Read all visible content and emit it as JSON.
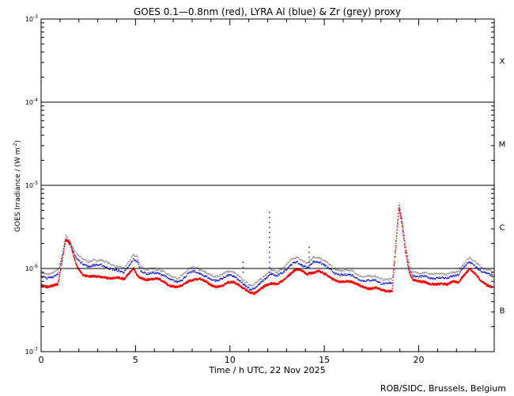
{
  "chart_data": {
    "type": "scatter",
    "title": "GOES 0.1—0.8nm (red), LYRA Al (blue) & Zr (grey) proxy",
    "xlabel": "Time / h UTC, 22 Nov 2025",
    "ylabel": "GOES Irradiance / (W m",
    "ylabel_sup": "-2",
    "ylabel_close": ")",
    "xlim": [
      0,
      24
    ],
    "ylim": [
      1e-07,
      0.001
    ],
    "yscale": "log",
    "x_ticks": [
      0,
      5,
      10,
      15,
      20
    ],
    "x_tick_labels": [
      "0",
      "5",
      "10",
      "15",
      "20"
    ],
    "y_ticks": [
      {
        "value": 1e-07,
        "base": "10",
        "exp": "-7"
      },
      {
        "value": 1e-06,
        "base": "10",
        "exp": "-6"
      },
      {
        "value": 1e-05,
        "base": "10",
        "exp": "-5"
      },
      {
        "value": 0.0001,
        "base": "10",
        "exp": "-4"
      },
      {
        "value": 0.001,
        "base": "10",
        "exp": "-3"
      }
    ],
    "threshold_lines": [
      1e-06,
      1e-05,
      0.0001
    ],
    "flare_classes": [
      {
        "label": "X",
        "value": 0.000316
      },
      {
        "label": "M",
        "value": 3.16e-05
      },
      {
        "label": "C",
        "value": 3.16e-06
      },
      {
        "label": "B",
        "value": 3.16e-07
      }
    ],
    "colors": {
      "goes": "#ff0000",
      "lyra_al": "#0000cc",
      "lyra_zr": "#8c8c8c",
      "frame": "#000000"
    },
    "series": [
      {
        "name": "GOES",
        "color": "#ff0000",
        "x": [
          0,
          0.3,
          0.6,
          0.9,
          1.1,
          1.3,
          1.5,
          1.7,
          1.9,
          2.2,
          2.5,
          2.8,
          3.2,
          3.6,
          4.0,
          4.4,
          4.7,
          4.9,
          5.1,
          5.3,
          5.6,
          5.9,
          6.2,
          6.5,
          6.8,
          7.2,
          7.5,
          7.8,
          8.1,
          8.4,
          8.7,
          9.0,
          9.3,
          9.6,
          9.9,
          10.2,
          10.5,
          10.8,
          11.1,
          11.3,
          11.6,
          11.9,
          12.2,
          12.5,
          12.9,
          13.2,
          13.5,
          13.8,
          14.1,
          14.4,
          14.7,
          15.0,
          15.3,
          15.6,
          15.9,
          16.2,
          16.5,
          16.8,
          17.1,
          17.4,
          17.7,
          18.0,
          18.3,
          18.6,
          18.8,
          18.95,
          19.1,
          19.3,
          19.5,
          19.7,
          20.0,
          20.3,
          20.6,
          20.9,
          21.2,
          21.5,
          21.8,
          22.1,
          22.4,
          22.7,
          23.0,
          23.3,
          23.6,
          23.9
        ],
        "y": [
          6.3e-07,
          6e-07,
          6.2e-07,
          6.5e-07,
          1.2e-06,
          2.2e-06,
          2.1e-06,
          1.5e-06,
          1.05e-06,
          8.4e-07,
          8e-07,
          8.1e-07,
          7.9e-07,
          7.6e-07,
          7.8e-07,
          7.5e-07,
          9e-07,
          1e-06,
          8.2e-07,
          7.6e-07,
          7.3e-07,
          7.5e-07,
          7.6e-07,
          6.9e-07,
          6.2e-07,
          6e-07,
          6.3e-07,
          7e-07,
          7.3e-07,
          7.5e-07,
          7e-07,
          6.3e-07,
          6e-07,
          6.2e-07,
          6.8e-07,
          6.9e-07,
          6.3e-07,
          5.6e-07,
          5.1e-07,
          5e-07,
          5.6e-07,
          6.3e-07,
          6.6e-07,
          6.5e-07,
          7.4e-07,
          8.6e-07,
          9.8e-07,
          9.5e-07,
          8.5e-07,
          8.9e-07,
          9.3e-07,
          8.7e-07,
          7.9e-07,
          7.1e-07,
          6.9e-07,
          7e-07,
          6.9e-07,
          6.4e-07,
          5.9e-07,
          5.7e-07,
          5.9e-07,
          5.6e-07,
          5.3e-07,
          5.4e-07,
          1.9e-06,
          5.3e-06,
          3.6e-06,
          1.6e-06,
          9e-07,
          7.3e-07,
          7e-07,
          6.9e-07,
          6.5e-07,
          6.4e-07,
          6.6e-07,
          6.4e-07,
          7e-07,
          6.8e-07,
          8.3e-07,
          9.9e-07,
          8.6e-07,
          7.1e-07,
          6.3e-07,
          6e-07
        ]
      },
      {
        "name": "LYRA Al",
        "color": "#0000cc",
        "x": [
          0,
          0.3,
          0.6,
          0.9,
          1.1,
          1.3,
          1.5,
          1.7,
          1.9,
          2.2,
          2.5,
          2.8,
          3.2,
          3.6,
          4.0,
          4.4,
          4.7,
          4.9,
          5.1,
          5.3,
          5.6,
          5.9,
          6.2,
          6.5,
          6.8,
          7.2,
          7.5,
          7.8,
          8.1,
          8.4,
          8.7,
          9.0,
          9.3,
          9.6,
          9.9,
          10.2,
          10.5,
          10.8,
          11.1,
          11.3,
          11.6,
          11.9,
          12.2,
          12.5,
          12.9,
          13.2,
          13.5,
          13.8,
          14.1,
          14.4,
          14.7,
          15.0,
          15.3,
          15.6,
          15.9,
          16.2,
          16.5,
          16.8,
          17.1,
          17.4,
          17.7,
          18.0,
          18.3,
          18.6,
          18.8,
          18.95,
          19.1,
          19.3,
          19.5,
          19.7,
          20.0,
          20.3,
          20.6,
          20.9,
          21.2,
          21.5,
          21.8,
          22.1,
          22.4,
          22.7,
          23.0,
          23.3,
          23.6,
          23.9
        ],
        "y": [
          8.1e-07,
          7.6e-07,
          7.9e-07,
          8.7e-07,
          1.3e-06,
          2.3e-06,
          2e-06,
          1.6e-06,
          1.3e-06,
          1.15e-06,
          1.05e-06,
          1.1e-06,
          1.1e-06,
          1e-06,
          9.5e-07,
          9e-07,
          1.1e-06,
          1.3e-06,
          1.2e-06,
          9.3e-07,
          8.6e-07,
          8.9e-07,
          8.7e-07,
          8.3e-07,
          7.4e-07,
          6.9e-07,
          7.4e-07,
          8.7e-07,
          9.3e-07,
          8.6e-07,
          8.1e-07,
          7.4e-07,
          7.1e-07,
          7.6e-07,
          8.3e-07,
          8.1e-07,
          7.1e-07,
          6.2e-07,
          5.6e-07,
          5.8e-07,
          6.6e-07,
          7.6e-07,
          8.6e-07,
          8.1e-07,
          9.3e-07,
          1.1e-06,
          1.2e-06,
          1.1e-06,
          1.02e-06,
          1.2e-06,
          1.2e-06,
          1.1e-06,
          9.8e-07,
          8.6e-07,
          8.3e-07,
          8.5e-07,
          8.3e-07,
          7.4e-07,
          7.1e-07,
          7.2e-07,
          7.3e-07,
          6.6e-07,
          6.5e-07,
          6.8e-07,
          2.2e-06,
          5.6e-06,
          4e-06,
          1.8e-06,
          1e-06,
          8.1e-07,
          7.9e-07,
          8.1e-07,
          7.7e-07,
          7.6e-07,
          7.8e-07,
          7.6e-07,
          8.1e-07,
          8.3e-07,
          1.05e-06,
          1.2e-06,
          1.05e-06,
          9.3e-07,
          8.7e-07,
          8.3e-07
        ]
      },
      {
        "name": "LYRA Zr",
        "color": "#8c8c8c",
        "x": [
          0,
          0.3,
          0.6,
          0.9,
          1.1,
          1.3,
          1.5,
          1.7,
          1.9,
          2.2,
          2.5,
          2.8,
          3.2,
          3.6,
          4.0,
          4.4,
          4.7,
          4.9,
          5.1,
          5.3,
          5.6,
          5.9,
          6.2,
          6.5,
          6.8,
          7.2,
          7.5,
          7.8,
          8.1,
          8.4,
          8.7,
          9.0,
          9.3,
          9.6,
          9.9,
          10.2,
          10.5,
          10.8,
          11.1,
          11.3,
          11.6,
          11.9,
          12.2,
          12.5,
          12.9,
          13.2,
          13.5,
          13.8,
          14.1,
          14.4,
          14.7,
          15.0,
          15.3,
          15.6,
          15.9,
          16.2,
          16.5,
          16.8,
          17.1,
          17.4,
          17.7,
          18.0,
          18.3,
          18.6,
          18.8,
          18.95,
          19.1,
          19.3,
          19.5,
          19.7,
          20.0,
          20.3,
          20.6,
          20.9,
          21.2,
          21.5,
          21.8,
          22.1,
          22.4,
          22.7,
          23.0,
          23.3,
          23.6,
          23.9
        ],
        "y": [
          8.6e-07,
          8.1e-07,
          8.4e-07,
          9.2e-07,
          1.4e-06,
          2.4e-06,
          2.1e-06,
          1.7e-06,
          1.4e-06,
          1.25e-06,
          1.15e-06,
          1.2e-06,
          1.2e-06,
          1.1e-06,
          1e-06,
          9.6e-07,
          1.2e-06,
          1.4e-06,
          1.3e-06,
          1e-06,
          9.2e-07,
          9.5e-07,
          9.3e-07,
          8.8e-07,
          7.9e-07,
          7.3e-07,
          7.9e-07,
          9.3e-07,
          9.9e-07,
          9.2e-07,
          8.6e-07,
          7.9e-07,
          7.6e-07,
          8.1e-07,
          8.9e-07,
          8.6e-07,
          7.6e-07,
          6.6e-07,
          6e-07,
          6.2e-07,
          7e-07,
          8.1e-07,
          9.2e-07,
          8.6e-07,
          9.9e-07,
          1.2e-06,
          1.3e-06,
          1.2e-06,
          1.1e-06,
          1.3e-06,
          1.3e-06,
          1.2e-06,
          1.05e-06,
          9.2e-07,
          8.9e-07,
          9.1e-07,
          8.9e-07,
          7.9e-07,
          7.6e-07,
          7.7e-07,
          7.8e-07,
          7.1e-07,
          7e-07,
          7.3e-07,
          2.3e-06,
          5.8e-06,
          4.2e-06,
          1.9e-06,
          1.1e-06,
          8.6e-07,
          8.4e-07,
          8.6e-07,
          8.2e-07,
          8.1e-07,
          8.3e-07,
          8.1e-07,
          8.6e-07,
          8.9e-07,
          1.1e-06,
          1.3e-06,
          1.15e-06,
          1e-06,
          9.2e-07,
          8.9e-07
        ]
      }
    ],
    "spikes": [
      {
        "x": 12.1,
        "y": 4.8e-06
      },
      {
        "x": 14.2,
        "y": 2e-06
      },
      {
        "x": 10.7,
        "y": 1.3e-06
      }
    ]
  },
  "credit": "ROB/SIDC, Brussels, Belgium"
}
